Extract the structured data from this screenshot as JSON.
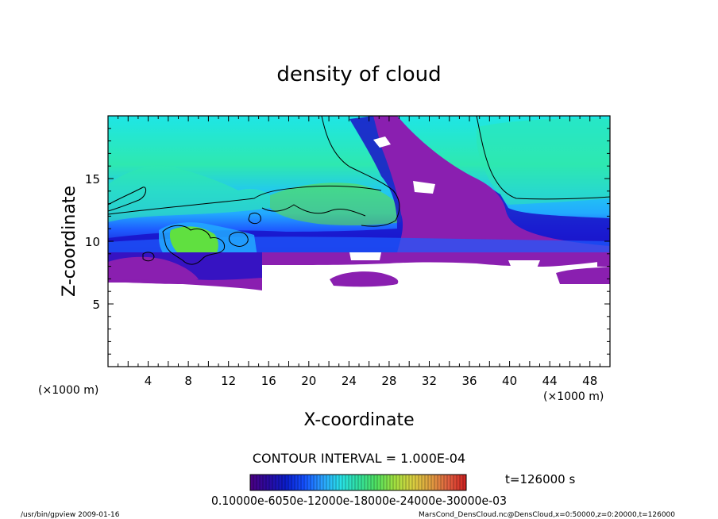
{
  "chart_data": {
    "type": "heatmap",
    "title": "density of cloud",
    "xlabel": "X-coordinate",
    "ylabel": "Z-coordinate",
    "x_unit": "(×1000 m)",
    "y_unit": "(×1000 m)",
    "xlim": [
      0,
      50
    ],
    "ylim": [
      0,
      20
    ],
    "x_ticks": [
      4,
      8,
      12,
      16,
      20,
      24,
      28,
      32,
      36,
      40,
      44,
      48
    ],
    "y_ticks": [
      5,
      10,
      15
    ],
    "contour_interval": "CONTOUR INTERVAL = 1.000E-04",
    "time_label": "t=126000 s",
    "colorbar_tick_text": "0.10000e-6050e-12000e-18000e-24000e-30000e-03",
    "footer_left": "/usr/bin/gpview  2009-01-16",
    "footer_right": "MarsCond_DensCloud.nc@DensCloud,x=0:50000,z=0:20000,t=126000",
    "colorbar_colors": [
      "#4b0082",
      "#2a0aa0",
      "#0a1ecc",
      "#1450ff",
      "#2aa0ff",
      "#28e0e8",
      "#30e0a0",
      "#50e060",
      "#a0e040",
      "#d8d040",
      "#e0a040",
      "#e06040",
      "#d02020"
    ],
    "field_colors": {
      "empty": "#ffffff",
      "purple": "#8a1fb0",
      "deep_blue": "#1a10c8",
      "blue": "#1e5cff",
      "sky": "#22aaff",
      "cyan": "#1ee6e6",
      "aqua_green": "#2ee8b0",
      "green": "#3ee070",
      "lime": "#60e040"
    }
  }
}
